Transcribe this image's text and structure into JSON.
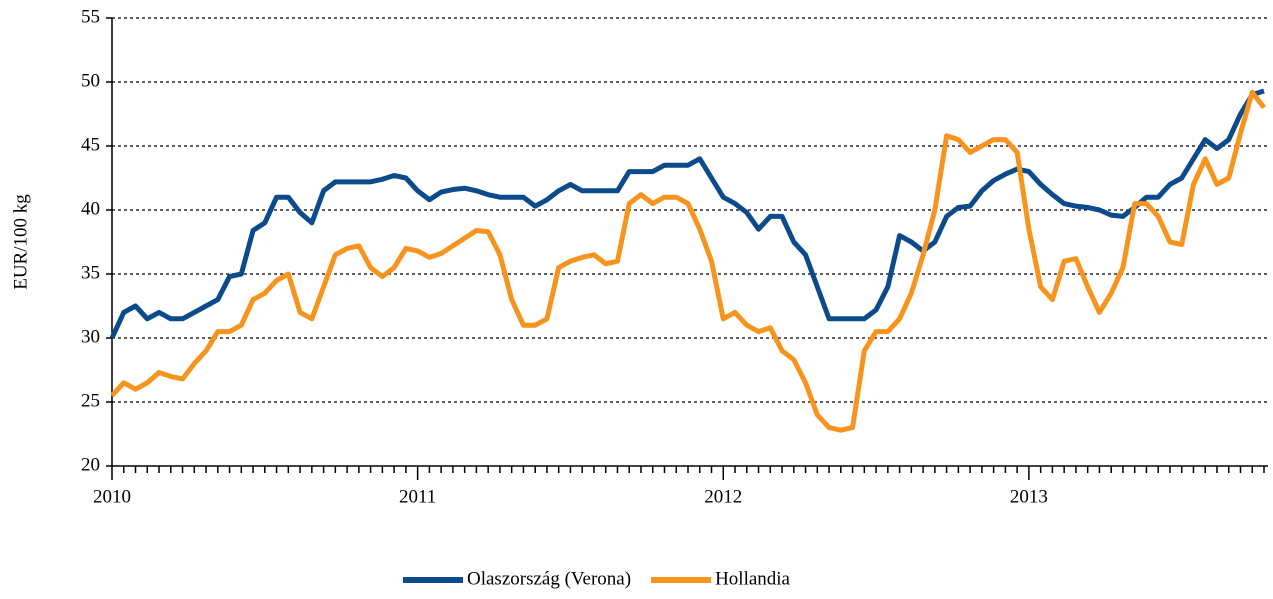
{
  "chart_data": {
    "type": "line",
    "y_label": "EUR/100 kg",
    "categories": [
      "2010",
      null,
      null,
      null,
      null,
      null,
      null,
      null,
      null,
      null,
      null,
      null,
      null,
      null,
      null,
      null,
      null,
      null,
      null,
      null,
      null,
      null,
      null,
      null,
      null,
      null,
      "2011",
      null,
      null,
      null,
      null,
      null,
      null,
      null,
      null,
      null,
      null,
      null,
      null,
      null,
      null,
      null,
      null,
      null,
      null,
      null,
      null,
      null,
      null,
      null,
      null,
      null,
      "2012",
      null,
      null,
      null,
      null,
      null,
      null,
      null,
      null,
      null,
      null,
      null,
      null,
      null,
      null,
      null,
      null,
      null,
      null,
      null,
      null,
      null,
      null,
      null,
      null,
      null,
      "2013",
      null,
      null,
      null,
      null,
      null,
      null,
      null,
      null,
      null,
      null,
      null,
      null,
      null,
      null,
      null,
      null,
      null,
      null,
      null,
      null
    ],
    "series": [
      {
        "name": "Olaszország (Verona)",
        "color": "#0b4a8b",
        "values": [
          30,
          32,
          32.5,
          31.5,
          32,
          31.5,
          31.5,
          32,
          32.5,
          33,
          34.8,
          35,
          38.4,
          39,
          41,
          41,
          39.8,
          39,
          41.5,
          42.2,
          42.2,
          42.2,
          42.2,
          42.4,
          42.7,
          42.5,
          41.5,
          40.8,
          41.4,
          41.6,
          41.7,
          41.5,
          41.2,
          41,
          41,
          41,
          40.3,
          40.8,
          41.5,
          42,
          41.5,
          41.5,
          41.5,
          41.5,
          43,
          43,
          43,
          43.5,
          43.5,
          43.5,
          44,
          42.5,
          41,
          40.5,
          39.8,
          38.5,
          39.5,
          39.5,
          37.5,
          36.5,
          34,
          31.5,
          31.5,
          31.5,
          31.5,
          32.2,
          34,
          38,
          37.5,
          36.8,
          37.5,
          39.5,
          40.2,
          40.3,
          41.5,
          42.3,
          42.8,
          43.2,
          43,
          42,
          41.2,
          40.5,
          40.3,
          40.2,
          40,
          39.6,
          39.5,
          40.2,
          41,
          41,
          42,
          42.5,
          44,
          45.5,
          44.8,
          45.5,
          47.5,
          49,
          49.3
        ]
      },
      {
        "name": "Hollandia",
        "color": "#f7941d",
        "values": [
          25.5,
          26.5,
          26,
          26.5,
          27.3,
          27,
          26.8,
          28,
          29,
          30.5,
          30.5,
          31,
          33,
          33.5,
          34.5,
          35,
          32,
          31.5,
          34,
          36.5,
          37,
          37.2,
          35.5,
          34.8,
          35.5,
          37,
          36.8,
          36.3,
          36.6,
          37.2,
          37.8,
          38.4,
          38.3,
          36.5,
          33,
          31,
          31,
          31.5,
          35.5,
          36,
          36.3,
          36.5,
          35.8,
          36,
          40.5,
          41.2,
          40.5,
          41,
          41,
          40.5,
          38.5,
          36,
          31.5,
          32,
          31,
          30.5,
          30.8,
          29,
          28.3,
          26.5,
          24,
          23,
          22.8,
          23,
          29,
          30.5,
          30.5,
          31.5,
          33.5,
          36.5,
          40,
          45.8,
          45.5,
          44.5,
          45,
          45.5,
          45.5,
          44.5,
          38.5,
          34,
          33,
          36,
          36.2,
          34,
          32,
          33.5,
          35.5,
          40.5,
          40.5,
          39.5,
          37.5,
          37.3,
          42,
          44,
          42,
          42.5,
          46,
          49.2,
          48
        ]
      }
    ],
    "ylim": [
      20,
      55
    ],
    "yticks": [
      20,
      25,
      30,
      35,
      40,
      45,
      50,
      55
    ],
    "grid": true,
    "legend": "bottom"
  }
}
